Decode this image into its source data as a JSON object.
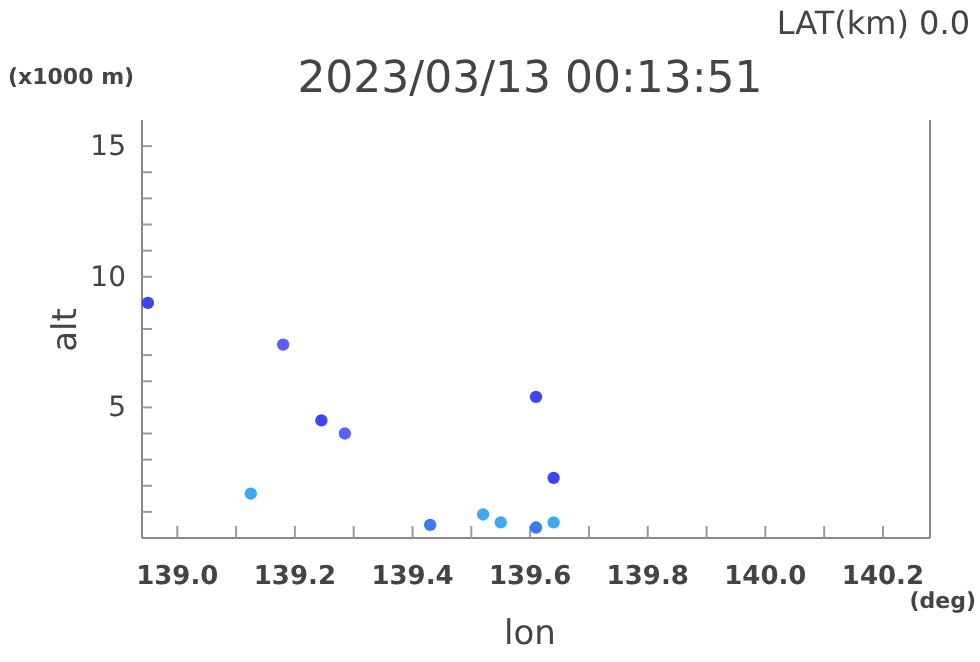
{
  "chart_data": {
    "type": "scatter",
    "title": "2023/03/13 00:13:51",
    "subtitle": "LAT(km) 0.0",
    "xlabel": "lon",
    "ylabel": "alt",
    "annotations": [
      "(x1000 m)",
      "(deg)"
    ],
    "x": [
      138.95,
      139.125,
      139.18,
      139.245,
      139.285,
      139.61,
      139.64,
      139.43,
      139.52,
      139.55,
      139.61,
      139.64
    ],
    "values": [
      9,
      1.7,
      7.4,
      4.5,
      4.0,
      5.4,
      2.3,
      0.5,
      0.9,
      0.6,
      0.4,
      0.6
    ],
    "colors": [
      "#3c46f0",
      "#40a8f0",
      "#5a60f0",
      "#3c46f0",
      "#5a60f0",
      "#3c46f0",
      "#3c46f0",
      "#3c78f0",
      "#40a8f0",
      "#40a8f0",
      "#3c78f0",
      "#40a8f0"
    ],
    "xlim": [
      138.94,
      140.28
    ],
    "xticks": [
      {
        "value": 139,
        "label": "139.0"
      },
      {
        "value": 139.1,
        "label": null
      },
      {
        "value": 139.2,
        "label": "139.2"
      },
      {
        "value": 139.3,
        "label": null
      },
      {
        "value": 139.4,
        "label": "139.4"
      },
      {
        "value": 139.5,
        "label": null
      },
      {
        "value": 139.6,
        "label": "139.6"
      },
      {
        "value": 139.7,
        "label": null
      },
      {
        "value": 139.8,
        "label": "139.8"
      },
      {
        "value": 139.9,
        "label": null
      },
      {
        "value": 140,
        "label": "140.0"
      },
      {
        "value": 140.1,
        "label": null
      },
      {
        "value": 140.2,
        "label": "140.2"
      }
    ],
    "ylim": [
      0,
      16
    ],
    "yticks": [
      {
        "value": 1,
        "label": null
      },
      {
        "value": 2,
        "label": null
      },
      {
        "value": 3,
        "label": null
      },
      {
        "value": 4,
        "label": null
      },
      5,
      {
        "value": 6,
        "label": null
      },
      {
        "value": 7,
        "label": null
      },
      {
        "value": 8,
        "label": null
      },
      {
        "value": 9,
        "label": null
      },
      10,
      {
        "value": 11,
        "label": null
      },
      {
        "value": 12,
        "label": null
      },
      {
        "value": 13,
        "label": null
      },
      {
        "value": 14,
        "label": null
      },
      15
    ],
    "marker": "circle",
    "grid": false
  }
}
